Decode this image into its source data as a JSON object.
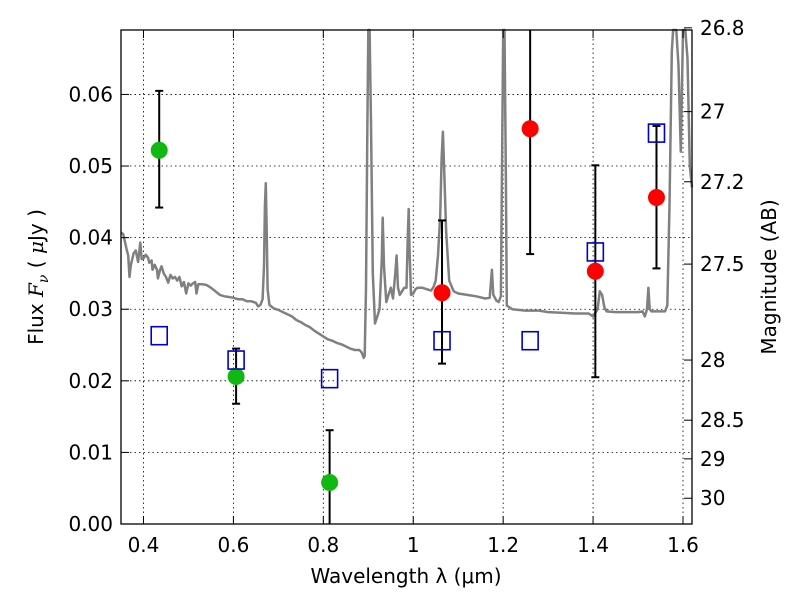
{
  "chart_data": {
    "type": "scatter",
    "xlabel": "Wavelength  λ (μm)",
    "ylabel_parts": [
      "Flux  ",
      "F",
      "ν",
      "  ( ",
      "μ",
      "Jy )"
    ],
    "y2label": "Magnitude (AB)",
    "xlim": [
      0.35,
      1.62
    ],
    "ylim": [
      0.0,
      0.069
    ],
    "grid": true,
    "xticks": [
      0.4,
      0.6,
      0.8,
      1.0,
      1.2,
      1.4,
      1.6
    ],
    "xtick_labels": [
      "0.4",
      "0.6",
      "0.8",
      "1",
      "1.2",
      "1.4",
      "1.6"
    ],
    "yticks": [
      0.0,
      0.01,
      0.02,
      0.03,
      0.04,
      0.05,
      0.06
    ],
    "ytick_labels": [
      "0.00",
      "0.01",
      "0.02",
      "0.03",
      "0.04",
      "0.05",
      "0.06"
    ],
    "y2ticks": [
      {
        "label": "26.8",
        "flux": 0.0693
      },
      {
        "label": "27",
        "flux": 0.0576
      },
      {
        "label": "27.2",
        "flux": 0.0478
      },
      {
        "label": "27.5",
        "flux": 0.0363
      },
      {
        "label": "28",
        "flux": 0.0229
      },
      {
        "label": "28.5",
        "flux": 0.0145
      },
      {
        "label": "29",
        "flux": 0.0091
      },
      {
        "label": "30",
        "flux": 0.0036
      }
    ],
    "colors": {
      "green": "#11b811",
      "red": "#ff0000",
      "blue": "#0000cc",
      "model": "#808080"
    },
    "series": [
      {
        "marker": "circle",
        "color": "green",
        "points": [
          {
            "x": 0.435,
            "y": 0.0522,
            "ylo": 0.0442,
            "yhi": 0.0605
          },
          {
            "x": 0.606,
            "y": 0.0206,
            "ylo": 0.0168,
            "yhi": 0.0245
          },
          {
            "x": 0.814,
            "y": 0.0058,
            "ylo": 0.0,
            "yhi": 0.0131
          }
        ]
      },
      {
        "marker": "circle",
        "color": "red",
        "points": [
          {
            "x": 1.064,
            "y": 0.0323,
            "ylo": 0.0224,
            "yhi": 0.0424
          },
          {
            "x": 1.26,
            "y": 0.0552,
            "ylo": 0.0377,
            "yhi": 0.0693
          },
          {
            "x": 1.405,
            "y": 0.0353,
            "ylo": 0.0205,
            "yhi": 0.0501
          },
          {
            "x": 1.541,
            "y": 0.0456,
            "ylo": 0.0357,
            "yhi": 0.0556
          }
        ]
      },
      {
        "marker": "open-square",
        "color": "blue",
        "points": [
          {
            "x": 0.435,
            "y": 0.0263
          },
          {
            "x": 0.606,
            "y": 0.0229
          },
          {
            "x": 0.814,
            "y": 0.0203
          },
          {
            "x": 1.064,
            "y": 0.0256
          },
          {
            "x": 1.26,
            "y": 0.0256
          },
          {
            "x": 1.405,
            "y": 0.038
          },
          {
            "x": 1.541,
            "y": 0.0546
          }
        ]
      }
    ],
    "model_spectrum": {
      "color": "model",
      "points": [
        [
          0.35,
          0.0407
        ],
        [
          0.355,
          0.0405
        ],
        [
          0.362,
          0.0385
        ],
        [
          0.366,
          0.0375
        ],
        [
          0.369,
          0.0345
        ],
        [
          0.372,
          0.0362
        ],
        [
          0.378,
          0.0378
        ],
        [
          0.383,
          0.0382
        ],
        [
          0.388,
          0.0366
        ],
        [
          0.393,
          0.0393
        ],
        [
          0.396,
          0.037
        ],
        [
          0.4,
          0.0371
        ],
        [
          0.405,
          0.0376
        ],
        [
          0.41,
          0.0372
        ],
        [
          0.413,
          0.0365
        ],
        [
          0.418,
          0.0368
        ],
        [
          0.42,
          0.0355
        ],
        [
          0.425,
          0.0362
        ],
        [
          0.43,
          0.0355
        ],
        [
          0.432,
          0.0343
        ],
        [
          0.437,
          0.0355
        ],
        [
          0.44,
          0.036
        ],
        [
          0.445,
          0.035
        ],
        [
          0.45,
          0.0345
        ],
        [
          0.455,
          0.0337
        ],
        [
          0.46,
          0.0348
        ],
        [
          0.465,
          0.0343
        ],
        [
          0.47,
          0.0345
        ],
        [
          0.475,
          0.034
        ],
        [
          0.48,
          0.0345
        ],
        [
          0.485,
          0.0332
        ],
        [
          0.49,
          0.0338
        ],
        [
          0.495,
          0.0322
        ],
        [
          0.5,
          0.0336
        ],
        [
          0.505,
          0.0333
        ],
        [
          0.51,
          0.0336
        ],
        [
          0.515,
          0.0338
        ],
        [
          0.518,
          0.0322
        ],
        [
          0.522,
          0.0335
        ],
        [
          0.53,
          0.0335
        ],
        [
          0.54,
          0.0334
        ],
        [
          0.55,
          0.033
        ],
        [
          0.56,
          0.0325
        ],
        [
          0.57,
          0.032
        ],
        [
          0.58,
          0.0318
        ],
        [
          0.59,
          0.0317
        ],
        [
          0.6,
          0.0316
        ],
        [
          0.61,
          0.0314
        ],
        [
          0.62,
          0.0314
        ],
        [
          0.63,
          0.0311
        ],
        [
          0.64,
          0.0311
        ],
        [
          0.65,
          0.0309
        ],
        [
          0.655,
          0.0304
        ],
        [
          0.66,
          0.0306
        ],
        [
          0.665,
          0.0314
        ],
        [
          0.668,
          0.036
        ],
        [
          0.67,
          0.0443
        ],
        [
          0.672,
          0.0476
        ],
        [
          0.674,
          0.041
        ],
        [
          0.676,
          0.0328
        ],
        [
          0.68,
          0.0306
        ],
        [
          0.69,
          0.0301
        ],
        [
          0.7,
          0.0299
        ],
        [
          0.71,
          0.0296
        ],
        [
          0.72,
          0.0293
        ],
        [
          0.73,
          0.029
        ],
        [
          0.74,
          0.0285
        ],
        [
          0.75,
          0.0282
        ],
        [
          0.76,
          0.0278
        ],
        [
          0.77,
          0.0275
        ],
        [
          0.78,
          0.027
        ],
        [
          0.79,
          0.0266
        ],
        [
          0.8,
          0.0262
        ],
        [
          0.81,
          0.0258
        ],
        [
          0.82,
          0.0256
        ],
        [
          0.83,
          0.0253
        ],
        [
          0.84,
          0.0251
        ],
        [
          0.85,
          0.0248
        ],
        [
          0.86,
          0.0245
        ],
        [
          0.87,
          0.0243
        ],
        [
          0.88,
          0.0243
        ],
        [
          0.885,
          0.024
        ],
        [
          0.89,
          0.0232
        ],
        [
          0.892,
          0.0235
        ],
        [
          0.895,
          0.033
        ],
        [
          0.898,
          0.056
        ],
        [
          0.9,
          0.0693
        ],
        [
          0.903,
          0.0693
        ],
        [
          0.906,
          0.056
        ],
        [
          0.91,
          0.035
        ],
        [
          0.915,
          0.028
        ],
        [
          0.92,
          0.029
        ],
        [
          0.925,
          0.03
        ],
        [
          0.93,
          0.037
        ],
        [
          0.932,
          0.0428
        ],
        [
          0.935,
          0.036
        ],
        [
          0.94,
          0.031
        ],
        [
          0.945,
          0.032
        ],
        [
          0.95,
          0.033
        ],
        [
          0.955,
          0.0315
        ],
        [
          0.96,
          0.035
        ],
        [
          0.963,
          0.0375
        ],
        [
          0.966,
          0.033
        ],
        [
          0.97,
          0.032
        ],
        [
          0.975,
          0.0325
        ],
        [
          0.98,
          0.033
        ],
        [
          0.985,
          0.033
        ],
        [
          0.988,
          0.0402
        ],
        [
          0.99,
          0.044
        ],
        [
          0.992,
          0.038
        ],
        [
          0.995,
          0.032
        ],
        [
          1.0,
          0.0322
        ],
        [
          1.005,
          0.0328
        ],
        [
          1.01,
          0.033
        ],
        [
          1.02,
          0.033
        ],
        [
          1.03,
          0.0328
        ],
        [
          1.04,
          0.0326
        ],
        [
          1.045,
          0.0331
        ],
        [
          1.05,
          0.034
        ],
        [
          1.055,
          0.0375
        ],
        [
          1.06,
          0.043
        ],
        [
          1.063,
          0.051
        ],
        [
          1.066,
          0.0548
        ],
        [
          1.069,
          0.049
        ],
        [
          1.073,
          0.041
        ],
        [
          1.08,
          0.034
        ],
        [
          1.09,
          0.0325
        ],
        [
          1.1,
          0.0322
        ],
        [
          1.12,
          0.032
        ],
        [
          1.14,
          0.0318
        ],
        [
          1.16,
          0.0315
        ],
        [
          1.17,
          0.0316
        ],
        [
          1.175,
          0.0355
        ],
        [
          1.178,
          0.032
        ],
        [
          1.185,
          0.0312
        ],
        [
          1.19,
          0.031
        ],
        [
          1.195,
          0.0318
        ],
        [
          1.2,
          0.0693
        ],
        [
          1.203,
          0.0693
        ],
        [
          1.206,
          0.048
        ],
        [
          1.208,
          0.0305
        ],
        [
          1.22,
          0.03
        ],
        [
          1.25,
          0.0298
        ],
        [
          1.28,
          0.0298
        ],
        [
          1.3,
          0.0296
        ],
        [
          1.33,
          0.0295
        ],
        [
          1.36,
          0.0294
        ],
        [
          1.39,
          0.0294
        ],
        [
          1.4,
          0.029
        ],
        [
          1.41,
          0.03
        ],
        [
          1.415,
          0.0325
        ],
        [
          1.42,
          0.032
        ],
        [
          1.425,
          0.0303
        ],
        [
          1.43,
          0.0297
        ],
        [
          1.45,
          0.0296
        ],
        [
          1.48,
          0.0296
        ],
        [
          1.5,
          0.0296
        ],
        [
          1.51,
          0.0297
        ],
        [
          1.515,
          0.029
        ],
        [
          1.52,
          0.03
        ],
        [
          1.523,
          0.033
        ],
        [
          1.526,
          0.03
        ],
        [
          1.53,
          0.0297
        ],
        [
          1.55,
          0.0297
        ],
        [
          1.56,
          0.0297
        ],
        [
          1.565,
          0.0305
        ],
        [
          1.57,
          0.0445
        ],
        [
          1.575,
          0.066
        ],
        [
          1.578,
          0.0693
        ],
        [
          1.585,
          0.0693
        ],
        [
          1.59,
          0.064
        ],
        [
          1.595,
          0.052
        ],
        [
          1.6,
          0.069
        ],
        [
          1.605,
          0.0693
        ],
        [
          1.61,
          0.065
        ],
        [
          1.615,
          0.05
        ],
        [
          1.62,
          0.047
        ]
      ]
    }
  }
}
